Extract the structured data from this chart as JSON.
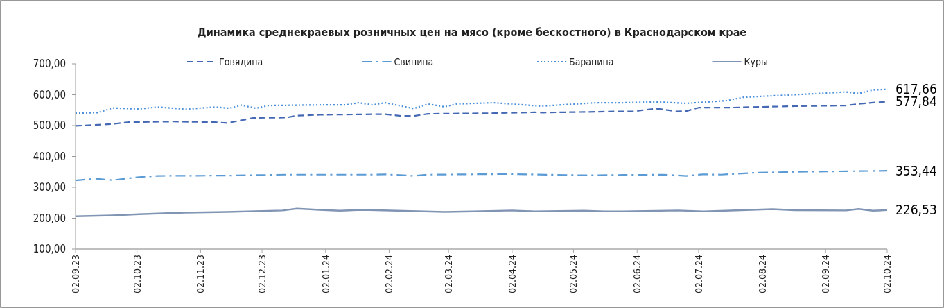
{
  "chart_data": {
    "type": "line",
    "title": "Динамика среднекраевых розничных цен на мясо (кроме бескостного) в Краснодарском крае",
    "legend": "top",
    "grid": false,
    "xlim": [
      "2023-09-02",
      "2024-10-02"
    ],
    "xticks": [
      {
        "value": "2023-09-02",
        "label": "02.09.23"
      },
      {
        "value": "2023-10-02",
        "label": "02.10.23"
      },
      {
        "value": "2023-11-02",
        "label": "02.11.23"
      },
      {
        "value": "2023-12-02",
        "label": "02.12.23"
      },
      {
        "value": "2024-01-02",
        "label": "02.01.24"
      },
      {
        "value": "2024-02-02",
        "label": "02.02.24"
      },
      {
        "value": "2024-03-02",
        "label": "02.03.24"
      },
      {
        "value": "2024-04-02",
        "label": "02.04.24"
      },
      {
        "value": "2024-05-02",
        "label": "02.05.24"
      },
      {
        "value": "2024-06-02",
        "label": "02.06.24"
      },
      {
        "value": "2024-07-02",
        "label": "02.07.24"
      },
      {
        "value": "2024-08-02",
        "label": "02.08.24"
      },
      {
        "value": "2024-09-02",
        "label": "02.09.24"
      },
      {
        "value": "2024-10-02",
        "label": "02.10.24"
      }
    ],
    "ylim": [
      100,
      700
    ],
    "yticks": [
      {
        "value": 100,
        "label": "100,00"
      },
      {
        "value": 200,
        "label": "200,00"
      },
      {
        "value": 300,
        "label": "300,00"
      },
      {
        "value": 400,
        "label": "400,00"
      },
      {
        "value": 500,
        "label": "500,00"
      },
      {
        "value": 600,
        "label": "600,00"
      },
      {
        "value": 700,
        "label": "700,00"
      }
    ],
    "series": [
      {
        "name": "Говядина",
        "color": "#4468b4",
        "line_style": "dashed",
        "x": [
          "2023-09-02",
          "2023-09-20",
          "2023-09-28",
          "2023-10-20",
          "2023-11-09",
          "2023-11-15",
          "2023-11-28",
          "2023-12-14",
          "2023-12-19",
          "2023-12-30",
          "2024-01-31",
          "2024-02-08",
          "2024-02-14",
          "2024-02-21",
          "2024-03-24",
          "2024-04-13",
          "2024-04-17",
          "2024-05-26",
          "2024-05-31",
          "2024-06-11",
          "2024-06-15",
          "2024-06-21",
          "2024-06-26",
          "2024-07-02",
          "2024-07-16",
          "2024-08-18",
          "2024-09-12",
          "2024-09-19",
          "2024-10-02"
        ],
        "values": [
          499,
          505,
          511,
          513,
          511,
          508,
          525,
          526,
          532,
          535,
          537,
          531,
          531,
          538,
          540,
          543,
          542,
          546,
          546,
          555,
          552,
          546,
          547,
          558,
          558,
          563,
          565,
          571,
          577.84
        ],
        "value_labels": [
          null,
          null,
          null,
          null,
          null,
          null,
          null,
          null,
          null,
          null,
          null,
          null,
          null,
          null,
          null,
          null,
          null,
          null,
          null,
          null,
          null,
          null,
          null,
          null,
          null,
          null,
          null,
          null,
          "577,84"
        ]
      },
      {
        "name": "Свинина",
        "color": "#5b9bd5",
        "line_style": "dashdot",
        "x": [
          "2023-09-02",
          "2023-09-12",
          "2023-09-20",
          "2023-10-03",
          "2023-10-12",
          "2023-11-16",
          "2023-12-14",
          "2024-01-25",
          "2024-01-31",
          "2024-02-14",
          "2024-02-21",
          "2024-03-31",
          "2024-04-09",
          "2024-05-07",
          "2024-05-26",
          "2024-05-31",
          "2024-06-15",
          "2024-06-26",
          "2024-07-04",
          "2024-07-13",
          "2024-07-29",
          "2024-08-18",
          "2024-09-12",
          "2024-10-02"
        ],
        "values": [
          322,
          328,
          323,
          333,
          337,
          338,
          341,
          341,
          342,
          337,
          341,
          343,
          342,
          339,
          340,
          340,
          341,
          337,
          342,
          341,
          347,
          350,
          352,
          353.44
        ],
        "value_labels": [
          null,
          null,
          null,
          null,
          null,
          null,
          null,
          null,
          null,
          null,
          null,
          null,
          null,
          null,
          null,
          null,
          null,
          null,
          null,
          null,
          null,
          null,
          null,
          "353,44"
        ]
      },
      {
        "name": "Баранина",
        "color": "#4a8fdc",
        "line_style": "dotted",
        "x": [
          "2023-09-02",
          "2023-09-13",
          "2023-09-20",
          "2023-10-03",
          "2023-10-12",
          "2023-10-26",
          "2023-11-09",
          "2023-11-16",
          "2023-11-22",
          "2023-11-29",
          "2023-12-05",
          "2023-12-30",
          "2024-01-12",
          "2024-01-18",
          "2024-01-25",
          "2024-01-31",
          "2024-02-14",
          "2024-02-21",
          "2024-02-29",
          "2024-03-06",
          "2024-03-24",
          "2024-04-16",
          "2024-05-13",
          "2024-05-26",
          "2024-06-11",
          "2024-06-26",
          "2024-07-16",
          "2024-07-24",
          "2024-08-18",
          "2024-09-12",
          "2024-09-18",
          "2024-09-25",
          "2024-10-02"
        ],
        "values": [
          540,
          542,
          557,
          554,
          560,
          553,
          560,
          556,
          566,
          556,
          565,
          567,
          567,
          574,
          567,
          574,
          555,
          570,
          561,
          570,
          574,
          563,
          574,
          574,
          577,
          572,
          581,
          592,
          600,
          609,
          604,
          615,
          617.66
        ],
        "value_labels": [
          null,
          null,
          null,
          null,
          null,
          null,
          null,
          null,
          null,
          null,
          null,
          null,
          null,
          null,
          null,
          null,
          null,
          null,
          null,
          null,
          null,
          null,
          null,
          null,
          null,
          null,
          null,
          null,
          null,
          null,
          null,
          null,
          "617,66"
        ]
      },
      {
        "name": "Куры",
        "color": "#8094b4",
        "line_style": "solid",
        "x": [
          "2023-09-02",
          "2023-09-20",
          "2023-10-03",
          "2023-10-25",
          "2023-11-15",
          "2023-12-12",
          "2023-12-19",
          "2023-12-30",
          "2024-01-09",
          "2024-01-20",
          "2024-02-06",
          "2024-02-29",
          "2024-03-14",
          "2024-04-02",
          "2024-04-13",
          "2024-05-07",
          "2024-05-17",
          "2024-05-26",
          "2024-06-22",
          "2024-07-04",
          "2024-08-07",
          "2024-08-18",
          "2024-09-12",
          "2024-09-18",
          "2024-09-25",
          "2024-10-02"
        ],
        "values": [
          206,
          209,
          213,
          218,
          220,
          225,
          231,
          227,
          224,
          227,
          224,
          220,
          222,
          225,
          222,
          224,
          222,
          222,
          225,
          222,
          229,
          226,
          225,
          230,
          224,
          226.53
        ],
        "value_labels": [
          null,
          null,
          null,
          null,
          null,
          null,
          null,
          null,
          null,
          null,
          null,
          null,
          null,
          null,
          null,
          null,
          null,
          null,
          null,
          null,
          null,
          null,
          null,
          null,
          null,
          "226,53"
        ]
      }
    ]
  }
}
